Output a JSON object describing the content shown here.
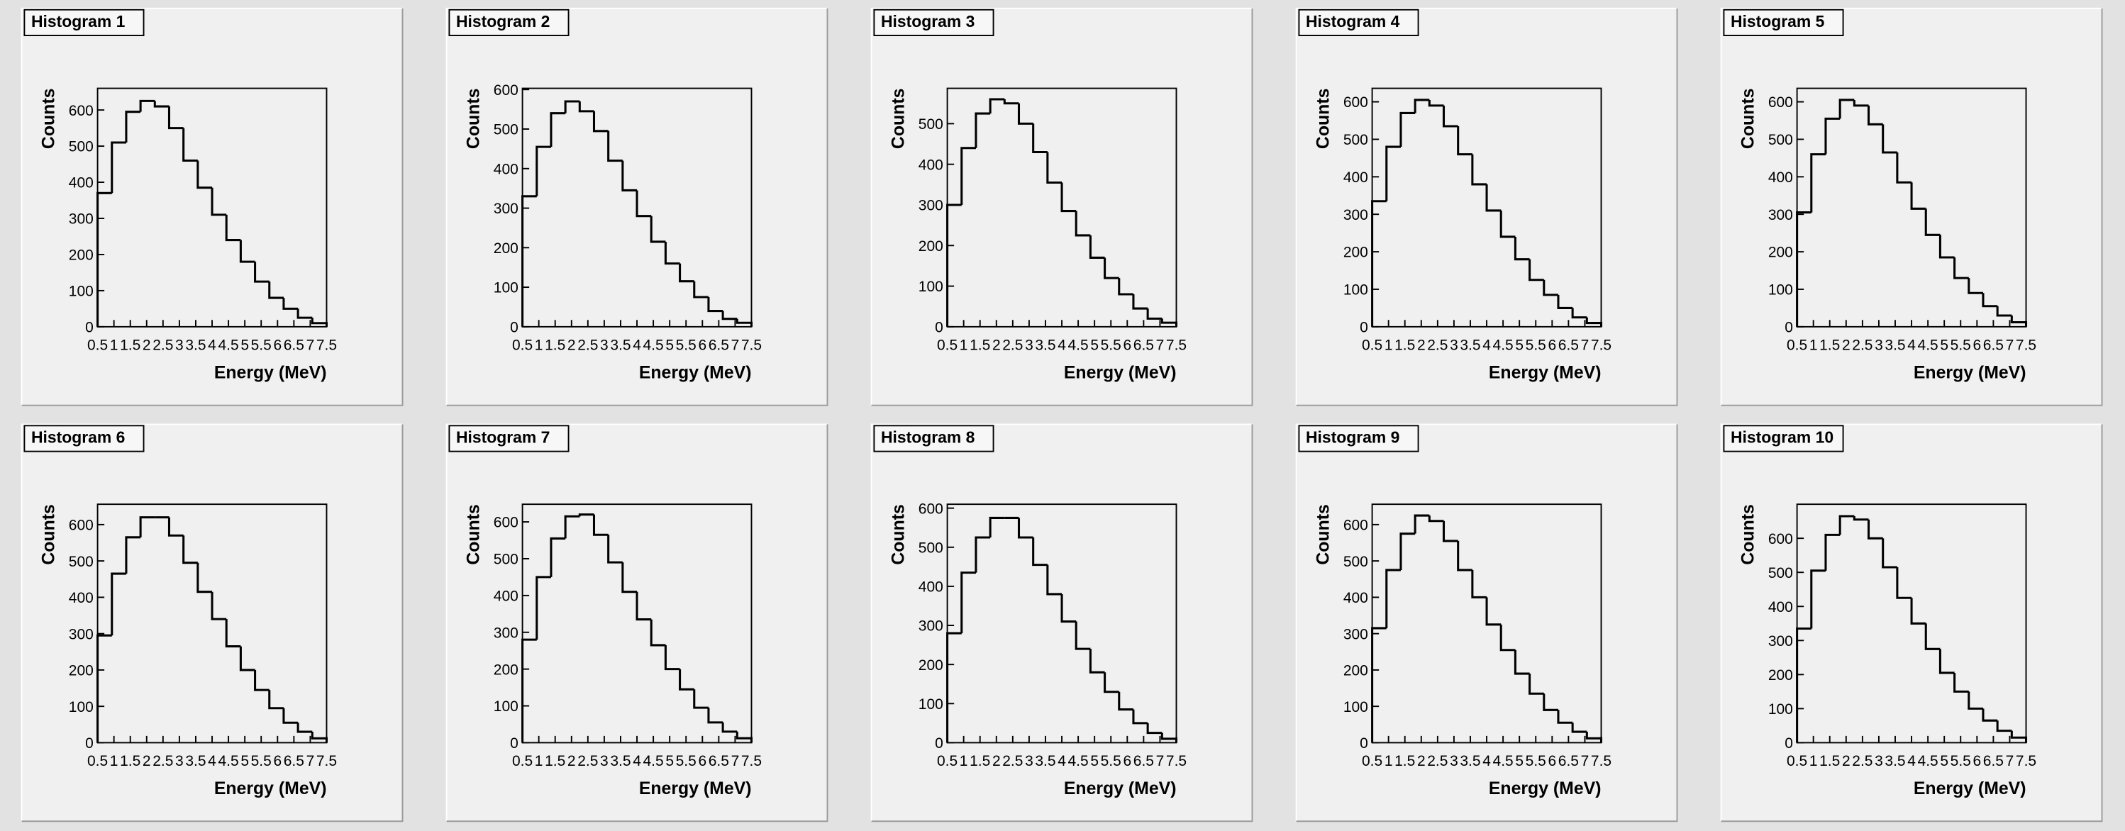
{
  "chart_data": [
    {
      "type": "histogram",
      "title": "Histogram 1",
      "x_label": "Energy (MeV)",
      "y_label": "Counts",
      "color": "#000000",
      "bins": [
        0.5,
        0.9375,
        1.375,
        1.8125,
        2.25,
        2.6875,
        3.125,
        3.5625,
        4,
        4.4375,
        4.875,
        5.3125,
        5.75,
        6.1875,
        6.625,
        7.0625,
        7.5
      ],
      "values": [
        370,
        510,
        595,
        625,
        610,
        550,
        460,
        385,
        310,
        240,
        180,
        125,
        80,
        50,
        25,
        10
      ],
      "xlim": [
        0.5,
        7.5
      ],
      "xticks": [
        0.5,
        1,
        1.5,
        2,
        2.5,
        3,
        3.5,
        4,
        4.5,
        5,
        5.5,
        6,
        6.5,
        7,
        7.5
      ],
      "ylim": [
        0,
        660
      ],
      "yticks": [
        0,
        100,
        200,
        300,
        400,
        500,
        600
      ]
    },
    {
      "type": "histogram",
      "title": "Histogram 2",
      "x_label": "Energy (MeV)",
      "y_label": "Counts",
      "color": "#000000",
      "bins": [
        0.5,
        0.9375,
        1.375,
        1.8125,
        2.25,
        2.6875,
        3.125,
        3.5625,
        4,
        4.4375,
        4.875,
        5.3125,
        5.75,
        6.1875,
        6.625,
        7.0625,
        7.5
      ],
      "values": [
        330,
        455,
        540,
        570,
        545,
        495,
        420,
        345,
        280,
        215,
        160,
        115,
        75,
        40,
        20,
        10
      ],
      "xlim": [
        0.5,
        7.5
      ],
      "xticks": [
        0.5,
        1,
        1.5,
        2,
        2.5,
        3,
        3.5,
        4,
        4.5,
        5,
        5.5,
        6,
        6.5,
        7,
        7.5
      ],
      "ylim": [
        0,
        603
      ],
      "yticks": [
        0,
        100,
        200,
        300,
        400,
        500,
        600
      ]
    },
    {
      "type": "histogram",
      "title": "Histogram 3",
      "x_label": "Energy (MeV)",
      "y_label": "Counts",
      "color": "#000000",
      "bins": [
        0.5,
        0.9375,
        1.375,
        1.8125,
        2.25,
        2.6875,
        3.125,
        3.5625,
        4,
        4.4375,
        4.875,
        5.3125,
        5.75,
        6.1875,
        6.625,
        7.0625,
        7.5
      ],
      "values": [
        300,
        440,
        525,
        560,
        550,
        500,
        430,
        355,
        285,
        225,
        170,
        120,
        80,
        45,
        20,
        10
      ],
      "xlim": [
        0.5,
        7.5
      ],
      "xticks": [
        0.5,
        1,
        1.5,
        2,
        2.5,
        3,
        3.5,
        4,
        4.5,
        5,
        5.5,
        6,
        6.5,
        7,
        7.5
      ],
      "ylim": [
        0,
        587
      ],
      "yticks": [
        0,
        100,
        200,
        300,
        400,
        500
      ]
    },
    {
      "type": "histogram",
      "title": "Histogram 4",
      "x_label": "Energy (MeV)",
      "y_label": "Counts",
      "color": "#000000",
      "bins": [
        0.5,
        0.9375,
        1.375,
        1.8125,
        2.25,
        2.6875,
        3.125,
        3.5625,
        4,
        4.4375,
        4.875,
        5.3125,
        5.75,
        6.1875,
        6.625,
        7.0625,
        7.5
      ],
      "values": [
        335,
        480,
        570,
        605,
        590,
        535,
        460,
        380,
        310,
        240,
        180,
        125,
        85,
        50,
        25,
        10
      ],
      "xlim": [
        0.5,
        7.5
      ],
      "xticks": [
        0.5,
        1,
        1.5,
        2,
        2.5,
        3,
        3.5,
        4,
        4.5,
        5,
        5.5,
        6,
        6.5,
        7,
        7.5
      ],
      "ylim": [
        0,
        636
      ],
      "yticks": [
        0,
        100,
        200,
        300,
        400,
        500,
        600
      ]
    },
    {
      "type": "histogram",
      "title": "Histogram 5",
      "x_label": "Energy (MeV)",
      "y_label": "Counts",
      "color": "#000000",
      "bins": [
        0.5,
        0.9375,
        1.375,
        1.8125,
        2.25,
        2.6875,
        3.125,
        3.5625,
        4,
        4.4375,
        4.875,
        5.3125,
        5.75,
        6.1875,
        6.625,
        7.0625,
        7.5
      ],
      "values": [
        305,
        460,
        555,
        605,
        590,
        540,
        465,
        385,
        315,
        245,
        185,
        130,
        90,
        55,
        30,
        12
      ],
      "xlim": [
        0.5,
        7.5
      ],
      "xticks": [
        0.5,
        1,
        1.5,
        2,
        2.5,
        3,
        3.5,
        4,
        4.5,
        5,
        5.5,
        6,
        6.5,
        7,
        7.5
      ],
      "ylim": [
        0,
        636
      ],
      "yticks": [
        0,
        100,
        200,
        300,
        400,
        500,
        600
      ]
    },
    {
      "type": "histogram",
      "title": "Histogram 6",
      "x_label": "Energy (MeV)",
      "y_label": "Counts",
      "color": "#000000",
      "bins": [
        0.5,
        0.9375,
        1.375,
        1.8125,
        2.25,
        2.6875,
        3.125,
        3.5625,
        4,
        4.4375,
        4.875,
        5.3125,
        5.75,
        6.1875,
        6.625,
        7.0625,
        7.5
      ],
      "values": [
        295,
        465,
        565,
        620,
        620,
        570,
        495,
        415,
        340,
        265,
        200,
        145,
        95,
        55,
        30,
        12
      ],
      "xlim": [
        0.5,
        7.5
      ],
      "xticks": [
        0.5,
        1,
        1.5,
        2,
        2.5,
        3,
        3.5,
        4,
        4.5,
        5,
        5.5,
        6,
        6.5,
        7,
        7.5
      ],
      "ylim": [
        0,
        656
      ],
      "yticks": [
        0,
        100,
        200,
        300,
        400,
        500,
        600
      ]
    },
    {
      "type": "histogram",
      "title": "Histogram 7",
      "x_label": "Energy (MeV)",
      "y_label": "Counts",
      "color": "#000000",
      "bins": [
        0.5,
        0.9375,
        1.375,
        1.8125,
        2.25,
        2.6875,
        3.125,
        3.5625,
        4,
        4.4375,
        4.875,
        5.3125,
        5.75,
        6.1875,
        6.625,
        7.0625,
        7.5
      ],
      "values": [
        280,
        450,
        555,
        615,
        620,
        565,
        490,
        410,
        335,
        265,
        200,
        145,
        95,
        55,
        30,
        12
      ],
      "xlim": [
        0.5,
        7.5
      ],
      "xticks": [
        0.5,
        1,
        1.5,
        2,
        2.5,
        3,
        3.5,
        4,
        4.5,
        5,
        5.5,
        6,
        6.5,
        7,
        7.5
      ],
      "ylim": [
        0,
        648
      ],
      "yticks": [
        0,
        100,
        200,
        300,
        400,
        500,
        600
      ]
    },
    {
      "type": "histogram",
      "title": "Histogram 8",
      "x_label": "Energy (MeV)",
      "y_label": "Counts",
      "color": "#000000",
      "bins": [
        0.5,
        0.9375,
        1.375,
        1.8125,
        2.25,
        2.6875,
        3.125,
        3.5625,
        4,
        4.4375,
        4.875,
        5.3125,
        5.75,
        6.1875,
        6.625,
        7.0625,
        7.5
      ],
      "values": [
        280,
        435,
        525,
        575,
        575,
        525,
        455,
        380,
        310,
        240,
        180,
        130,
        85,
        50,
        25,
        10
      ],
      "xlim": [
        0.5,
        7.5
      ],
      "xticks": [
        0.5,
        1,
        1.5,
        2,
        2.5,
        3,
        3.5,
        4,
        4.5,
        5,
        5.5,
        6,
        6.5,
        7,
        7.5
      ],
      "ylim": [
        0,
        610
      ],
      "yticks": [
        0,
        100,
        200,
        300,
        400,
        500,
        600
      ]
    },
    {
      "type": "histogram",
      "title": "Histogram 9",
      "x_label": "Energy (MeV)",
      "y_label": "Counts",
      "color": "#000000",
      "bins": [
        0.5,
        0.9375,
        1.375,
        1.8125,
        2.25,
        2.6875,
        3.125,
        3.5625,
        4,
        4.4375,
        4.875,
        5.3125,
        5.75,
        6.1875,
        6.625,
        7.0625,
        7.5
      ],
      "values": [
        315,
        475,
        575,
        625,
        610,
        555,
        475,
        400,
        325,
        255,
        190,
        135,
        90,
        55,
        30,
        12
      ],
      "xlim": [
        0.5,
        7.5
      ],
      "xticks": [
        0.5,
        1,
        1.5,
        2,
        2.5,
        3,
        3.5,
        4,
        4.5,
        5,
        5.5,
        6,
        6.5,
        7,
        7.5
      ],
      "ylim": [
        0,
        656
      ],
      "yticks": [
        0,
        100,
        200,
        300,
        400,
        500,
        600
      ]
    },
    {
      "type": "histogram",
      "title": "Histogram 10",
      "x_label": "Energy (MeV)",
      "y_label": "Counts",
      "color": "#000000",
      "bins": [
        0.5,
        0.9375,
        1.375,
        1.8125,
        2.25,
        2.6875,
        3.125,
        3.5625,
        4,
        4.4375,
        4.875,
        5.3125,
        5.75,
        6.1875,
        6.625,
        7.0625,
        7.5
      ],
      "values": [
        335,
        505,
        610,
        665,
        655,
        600,
        515,
        425,
        350,
        275,
        205,
        150,
        100,
        65,
        35,
        15
      ],
      "xlim": [
        0.5,
        7.5
      ],
      "xticks": [
        0.5,
        1,
        1.5,
        2,
        2.5,
        3,
        3.5,
        4,
        4.5,
        5,
        5.5,
        6,
        6.5,
        7,
        7.5
      ],
      "ylim": [
        0,
        700
      ],
      "yticks": [
        0,
        100,
        200,
        300,
        400,
        500,
        600
      ]
    }
  ]
}
